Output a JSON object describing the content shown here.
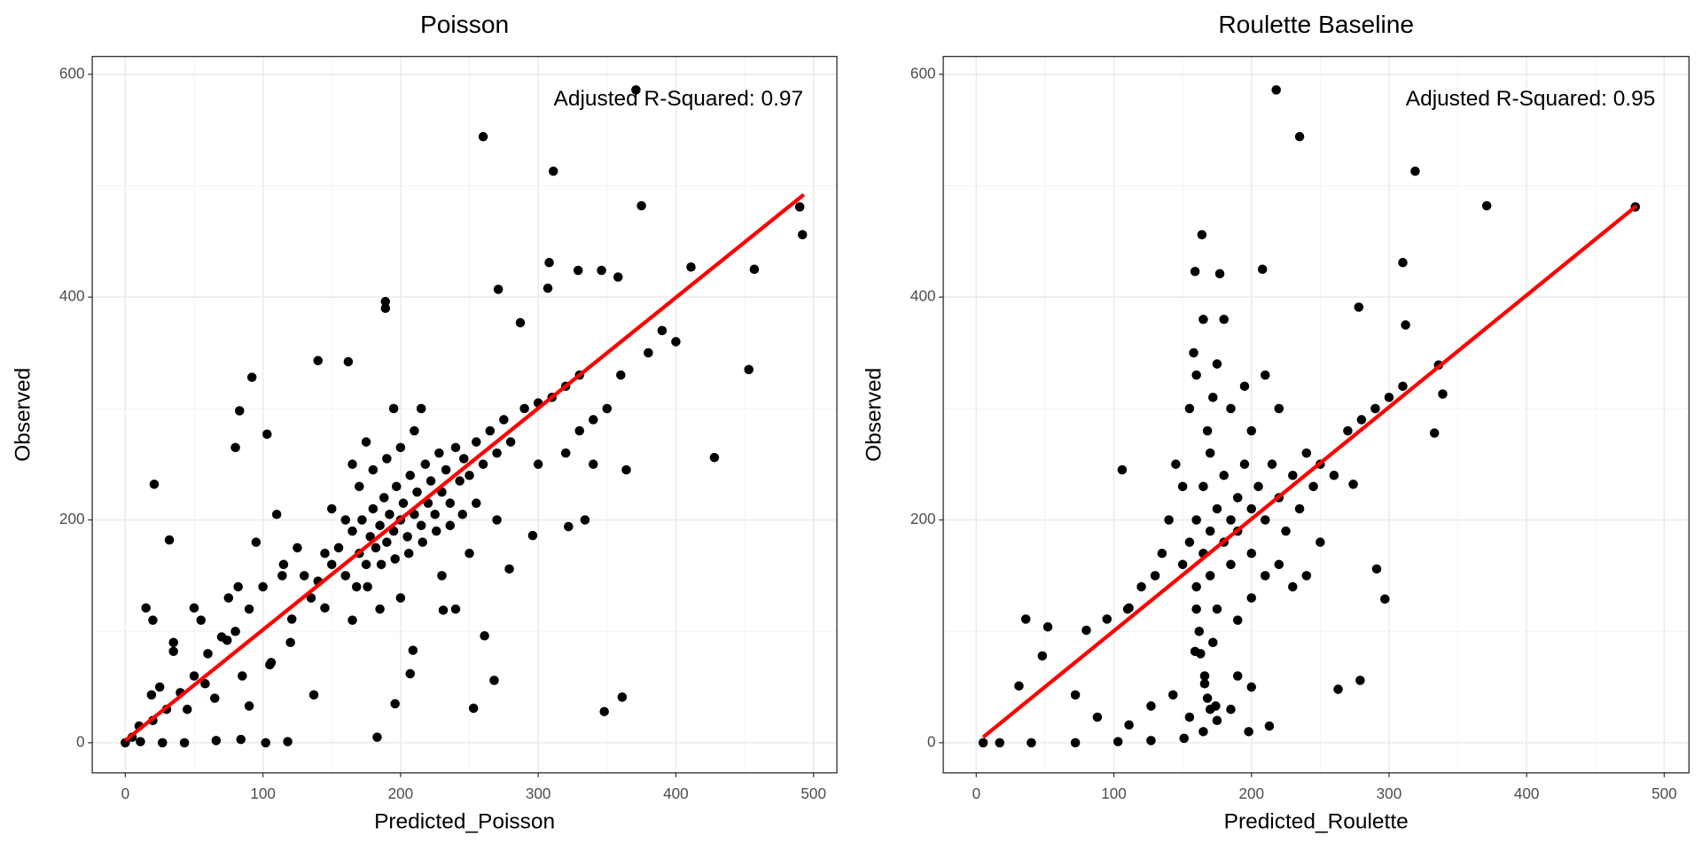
{
  "chart_data": [
    {
      "type": "scatter",
      "title": "Poisson",
      "x_label": "Predicted_Poisson",
      "y_label": "Observed",
      "annotation": "Adjusted R-Squared: 0.97",
      "color": "#000000",
      "grid": true,
      "xlim": [
        -24,
        517
      ],
      "ylim": [
        -27,
        616
      ],
      "xticks": [
        0,
        100,
        200,
        300,
        400,
        500
      ],
      "yticks": [
        0,
        200,
        400,
        600
      ],
      "xminor": [
        50,
        150,
        250,
        350,
        450
      ],
      "yminor": [
        100,
        300,
        500
      ],
      "x": [
        371,
        260,
        311,
        375,
        490,
        492,
        457,
        411,
        308,
        329,
        346,
        358,
        271,
        307,
        189,
        189,
        287,
        140,
        92,
        162,
        453,
        428,
        364,
        83,
        103,
        80,
        296,
        334,
        32,
        21,
        322,
        231,
        261,
        268,
        207,
        196,
        183,
        253,
        361,
        348,
        209,
        279,
        0,
        11,
        27,
        43,
        66,
        102,
        118,
        84,
        19,
        35,
        58,
        74,
        90,
        106,
        121,
        137,
        145,
        15,
        50,
        82,
        114,
        150,
        155,
        160,
        165,
        170,
        172,
        175,
        178,
        180,
        182,
        185,
        188,
        190,
        192,
        195,
        197,
        200,
        202,
        205,
        207,
        210,
        212,
        215,
        218,
        220,
        222,
        225,
        228,
        230,
        233,
        236,
        240,
        243,
        246,
        250,
        255,
        260,
        265,
        270,
        275,
        280,
        290,
        300,
        310,
        320,
        330,
        140,
        145,
        135,
        130,
        168,
        176,
        186,
        196,
        206,
        216,
        226,
        236,
        245,
        255,
        160,
        170,
        180,
        190,
        200,
        210,
        215,
        195,
        175,
        165,
        150,
        125,
        115,
        100,
        90,
        80,
        70,
        60,
        50,
        40,
        30,
        20,
        10,
        5,
        25,
        45,
        65,
        85,
        105,
        120,
        55,
        75,
        35,
        20,
        95,
        110,
        230,
        250,
        270,
        240,
        300,
        320,
        340,
        350,
        360,
        380,
        390,
        400,
        330,
        340,
        185,
        165,
        200
      ],
      "y": [
        586,
        544,
        513,
        482,
        481,
        456,
        425,
        427,
        431,
        424,
        424,
        418,
        407,
        408,
        396,
        390,
        377,
        343,
        328,
        342,
        335,
        256,
        245,
        298,
        277,
        265,
        186,
        200,
        182,
        232,
        194,
        119,
        96,
        56,
        62,
        35,
        5,
        31,
        41,
        28,
        83,
        156,
        0,
        1,
        0,
        0,
        2,
        0,
        1,
        3,
        43,
        82,
        53,
        92,
        33,
        72,
        111,
        43,
        121,
        121,
        121,
        140,
        150,
        160,
        175,
        150,
        190,
        170,
        200,
        160,
        185,
        210,
        175,
        195,
        220,
        180,
        205,
        190,
        230,
        200,
        215,
        185,
        240,
        205,
        225,
        195,
        250,
        215,
        235,
        205,
        260,
        225,
        245,
        215,
        265,
        235,
        255,
        240,
        270,
        250,
        280,
        260,
        290,
        270,
        300,
        305,
        310,
        320,
        330,
        145,
        170,
        130,
        150,
        140,
        140,
        160,
        165,
        170,
        180,
        190,
        195,
        205,
        215,
        200,
        230,
        245,
        255,
        265,
        280,
        300,
        300,
        270,
        250,
        210,
        175,
        160,
        140,
        120,
        100,
        95,
        80,
        60,
        45,
        30,
        20,
        15,
        5,
        50,
        30,
        40,
        60,
        70,
        90,
        110,
        130,
        90,
        110,
        180,
        205,
        150,
        170,
        200,
        120,
        250,
        260,
        290,
        300,
        330,
        350,
        370,
        360,
        280,
        250,
        120,
        110,
        130
      ],
      "fit": {
        "x": [
          0,
          493
        ],
        "y": [
          2,
          492
        ],
        "color": "#ff0000"
      }
    },
    {
      "type": "scatter",
      "title": "Roulette Baseline",
      "x_label": "Predicted_Roulette",
      "y_label": "Observed",
      "annotation": "Adjusted R-Squared: 0.95",
      "color": "#000000",
      "grid": true,
      "xlim": [
        -24,
        518
      ],
      "ylim": [
        -27,
        616
      ],
      "xticks": [
        0,
        100,
        200,
        300,
        400,
        500
      ],
      "yticks": [
        0,
        200,
        400,
        600
      ],
      "xminor": [
        50,
        150,
        250,
        350,
        450
      ],
      "yminor": [
        100,
        300,
        500
      ],
      "x": [
        218,
        235,
        319,
        371,
        479,
        164,
        208,
        310,
        177,
        159,
        278,
        312,
        336,
        339,
        333,
        274,
        106,
        297,
        291,
        263,
        279,
        213,
        198,
        5,
        17,
        40,
        72,
        103,
        127,
        151,
        36,
        52,
        31,
        48,
        80,
        95,
        111,
        159,
        166,
        174,
        155,
        143,
        127,
        111,
        88,
        72,
        150,
        155,
        160,
        160,
        165,
        165,
        170,
        170,
        170,
        175,
        175,
        180,
        180,
        185,
        185,
        190,
        190,
        195,
        200,
        200,
        205,
        210,
        215,
        220,
        225,
        230,
        235,
        240,
        245,
        250,
        260,
        270,
        280,
        290,
        300,
        310,
        155,
        160,
        158,
        165,
        162,
        163,
        166,
        168,
        170,
        172,
        160,
        150,
        145,
        140,
        135,
        130,
        120,
        110,
        168,
        172,
        175,
        180,
        185,
        195,
        200,
        210,
        220,
        190,
        200,
        210,
        220,
        230,
        250,
        240,
        190,
        200,
        165,
        175,
        185
      ],
      "y": [
        586,
        544,
        513,
        482,
        481,
        456,
        425,
        431,
        421,
        423,
        391,
        375,
        339,
        313,
        278,
        232,
        245,
        129,
        156,
        48,
        56,
        15,
        10,
        0,
        0,
        0,
        0,
        1,
        2,
        4,
        111,
        104,
        51,
        78,
        101,
        111,
        121,
        82,
        53,
        33,
        23,
        43,
        33,
        16,
        23,
        43,
        160,
        180,
        140,
        200,
        170,
        230,
        150,
        190,
        260,
        210,
        120,
        180,
        240,
        200,
        160,
        220,
        190,
        250,
        210,
        170,
        230,
        200,
        250,
        220,
        190,
        240,
        210,
        260,
        230,
        250,
        240,
        280,
        290,
        300,
        310,
        320,
        300,
        330,
        350,
        380,
        100,
        80,
        60,
        40,
        30,
        90,
        120,
        230,
        250,
        200,
        170,
        150,
        140,
        120,
        280,
        310,
        340,
        380,
        300,
        320,
        280,
        330,
        300,
        110,
        130,
        150,
        160,
        140,
        180,
        150,
        60,
        50,
        10,
        20,
        30
      ],
      "fit": {
        "x": [
          5,
          480
        ],
        "y": [
          5,
          482
        ],
        "color": "#ff0000"
      }
    }
  ]
}
